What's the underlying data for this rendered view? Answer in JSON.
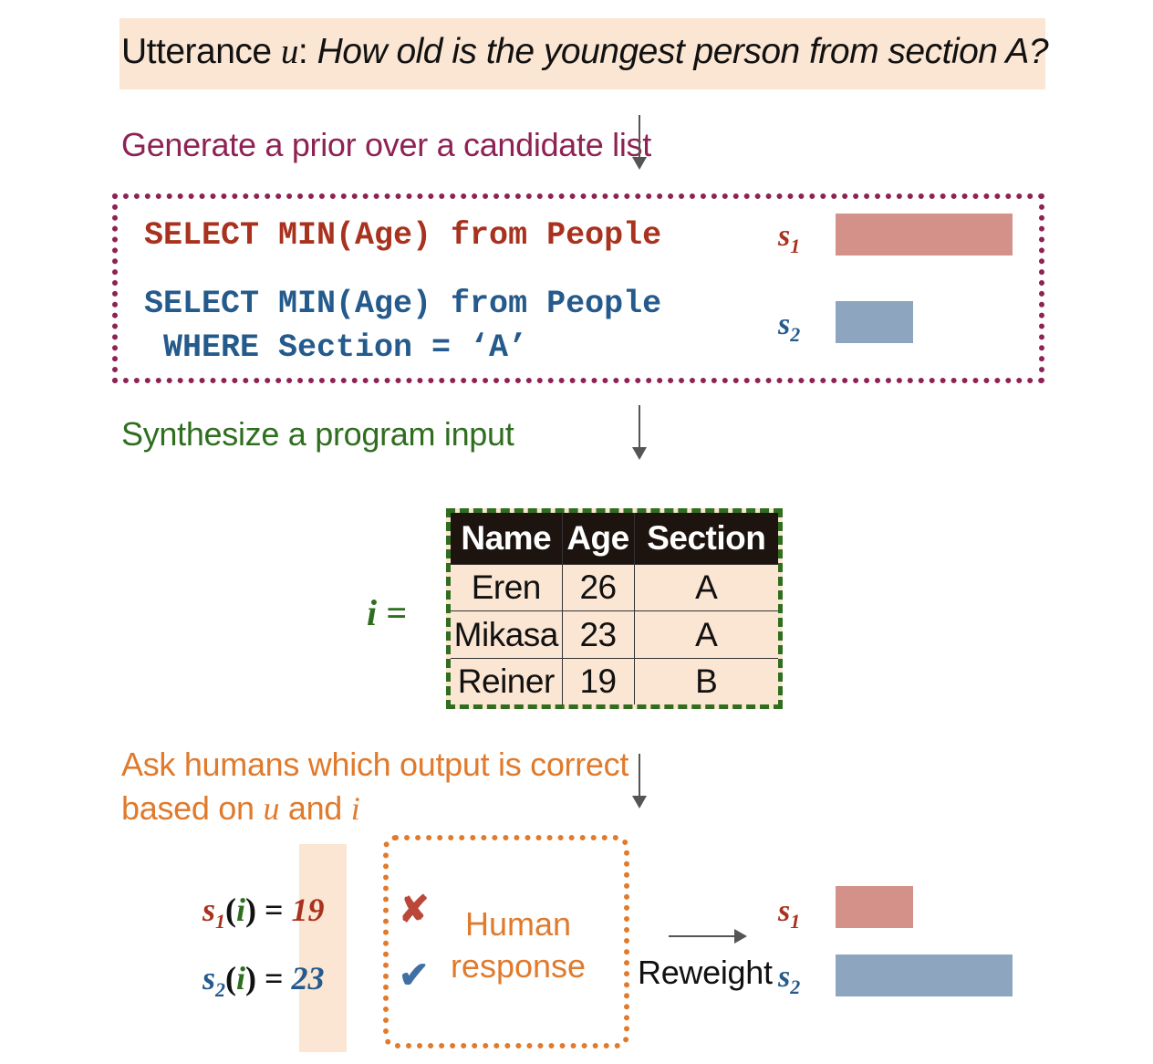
{
  "utterance": {
    "prefix": "Utterance ",
    "var": "u",
    "colon": ": ",
    "question": "How old is the youngest person from section A?"
  },
  "steps": {
    "prior": "Generate a prior over a candidate list",
    "synthesize": "Synthesize a program input",
    "ask_line1": "Ask humans which output is correct",
    "ask_line2_prefix": "based on ",
    "ask_var_u": "u",
    "ask_and": " and ",
    "ask_var_i": "i"
  },
  "candidates": [
    {
      "line1": "SELECT MIN(Age) from People",
      "line2": "",
      "score_base": "s",
      "score_sub": "1",
      "prior_weight": 1.0,
      "color": "#d4918a"
    },
    {
      "line1": "SELECT MIN(Age) from People",
      "line2": " WHERE Section = ‘A’",
      "score_base": "s",
      "score_sub": "2",
      "prior_weight": 0.44,
      "color": "#8ea5c0"
    }
  ],
  "program_input": {
    "label": "i =",
    "headers": [
      "Name",
      "Age",
      "Section"
    ],
    "rows": [
      [
        "Eren",
        "26",
        "A"
      ],
      [
        "Mikasa",
        "23",
        "A"
      ],
      [
        "Reiner",
        "19",
        "B"
      ]
    ]
  },
  "outputs": [
    {
      "s": "s",
      "sub": "1",
      "open": "(",
      "i": "i",
      "close": ")",
      "eq": " = ",
      "value": "19",
      "mark": "✘",
      "mark_color": "#b9473a"
    },
    {
      "s": "s",
      "sub": "2",
      "open": "(",
      "i": "i",
      "close": ")",
      "eq": " = ",
      "value": "23",
      "mark": "✔",
      "mark_color": "#3f6fa3"
    }
  ],
  "human": {
    "line1": "Human",
    "line2": "response"
  },
  "reweight": {
    "label": "Reweight",
    "posterior": [
      {
        "score_base": "s",
        "score_sub": "1",
        "weight": 0.44
      },
      {
        "score_base": "s",
        "score_sub": "2",
        "weight": 1.0
      }
    ]
  }
}
